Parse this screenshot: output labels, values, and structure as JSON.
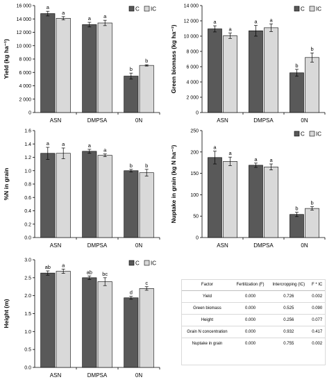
{
  "chart_data": [
    {
      "type": "bar",
      "panel": "yield",
      "ylabel": "Yield (kg ha⁻¹)",
      "categories": [
        "ASN",
        "DMPSA",
        "0N"
      ],
      "ylim": [
        0,
        16000
      ],
      "yticks": [
        0,
        2000,
        4000,
        6000,
        8000,
        10000,
        12000,
        14000,
        16000
      ],
      "ytick_labels": [
        "0",
        "2 000",
        "4 000",
        "6 000",
        "8 000",
        "10 000",
        "12 000",
        "14 000",
        "16 000"
      ],
      "series": [
        {
          "name": "C",
          "values": [
            14800,
            13150,
            5450
          ],
          "errors": [
            350,
            350,
            450
          ],
          "letters": [
            "a",
            "a",
            "b"
          ]
        },
        {
          "name": "IC",
          "values": [
            14100,
            13400,
            7050
          ],
          "errors": [
            250,
            400,
            100
          ],
          "letters": [
            "a",
            "a",
            "b"
          ]
        }
      ],
      "legend": "top-right"
    },
    {
      "type": "bar",
      "panel": "green-biomass",
      "ylabel": "Green biomass (kg ha⁻¹)",
      "categories": [
        "ASN",
        "DMPSA",
        "0N"
      ],
      "ylim": [
        0,
        14000
      ],
      "yticks": [
        0,
        2000,
        4000,
        6000,
        8000,
        10000,
        12000,
        14000
      ],
      "ytick_labels": [
        "0",
        "2 000",
        "4 000",
        "6 000",
        "8 000",
        "10 000",
        "12 000",
        "14 000"
      ],
      "series": [
        {
          "name": "C",
          "values": [
            10950,
            10700,
            5200
          ],
          "errors": [
            400,
            700,
            450
          ],
          "letters": [
            "a",
            "a",
            "b"
          ]
        },
        {
          "name": "IC",
          "values": [
            10050,
            11100,
            7200
          ],
          "errors": [
            350,
            500,
            600
          ],
          "letters": [
            "a",
            "a",
            "b"
          ]
        }
      ],
      "legend": "top-right"
    },
    {
      "type": "bar",
      "panel": "n-in-grain",
      "ylabel": "%N in grain",
      "categories": [
        "ASN",
        "DMPSA",
        "0N"
      ],
      "ylim": [
        0,
        1.6
      ],
      "yticks": [
        0,
        0.2,
        0.4,
        0.6,
        0.8,
        1.0,
        1.2,
        1.4,
        1.6
      ],
      "ytick_labels": [
        "0.0",
        "0.2",
        "0.4",
        "0.6",
        "0.8",
        "1.0",
        "1.2",
        "1.4",
        "1.6"
      ],
      "series": [
        {
          "name": "C",
          "values": [
            1.26,
            1.29,
            1.0
          ],
          "errors": [
            0.09,
            0.03,
            0.02
          ],
          "letters": [
            "a",
            "a",
            "b"
          ]
        },
        {
          "name": "IC",
          "values": [
            1.26,
            1.23,
            0.97
          ],
          "errors": [
            0.08,
            0.02,
            0.05
          ],
          "letters": [
            "a",
            "a",
            "b"
          ]
        }
      ],
      "legend": "none"
    },
    {
      "type": "bar",
      "panel": "nuptake-in-grain",
      "ylabel": "Nuptake in grain (kg N ha⁻¹)",
      "categories": [
        "ASN",
        "DMPSA",
        "0N"
      ],
      "ylim": [
        0,
        250
      ],
      "yticks": [
        0,
        50,
        100,
        150,
        200,
        250
      ],
      "ytick_labels": [
        "0",
        "50",
        "100",
        "150",
        "200",
        "250"
      ],
      "series": [
        {
          "name": "C",
          "values": [
            187,
            169,
            54
          ],
          "errors": [
            15,
            5,
            5
          ],
          "letters": [
            "a",
            "a",
            "b"
          ]
        },
        {
          "name": "IC",
          "values": [
            178,
            165,
            68
          ],
          "errors": [
            10,
            7,
            4
          ],
          "letters": [
            "a",
            "a",
            "b"
          ]
        }
      ],
      "legend": "top-right"
    },
    {
      "type": "bar",
      "panel": "height",
      "ylabel": "Height (m)",
      "categories": [
        "ASN",
        "DMPSA",
        "0N"
      ],
      "ylim": [
        0,
        3.0
      ],
      "yticks": [
        0,
        0.5,
        1.0,
        1.5,
        2.0,
        2.5,
        3.0
      ],
      "ytick_labels": [
        "0.0",
        "0.5",
        "1.0",
        "1.5",
        "2.0",
        "2.5",
        "3.0"
      ],
      "series": [
        {
          "name": "C",
          "values": [
            2.63,
            2.5,
            1.94
          ],
          "errors": [
            0.06,
            0.05,
            0.04
          ],
          "letters": [
            "ab",
            "ab",
            "d"
          ]
        },
        {
          "name": "IC",
          "values": [
            2.68,
            2.39,
            2.2
          ],
          "errors": [
            0.06,
            0.11,
            0.05
          ],
          "letters": [
            "a",
            "bc",
            "c"
          ]
        }
      ],
      "legend": "top-right"
    },
    {
      "type": "table",
      "columns": [
        "Factor",
        "Fertilization (F)",
        "Intercropping (IC)",
        "F * IC"
      ],
      "rows": [
        [
          "Yield",
          "0.000",
          "0.726",
          "0.002"
        ],
        [
          "Green biomass",
          "0.000",
          "0.525",
          "0.090"
        ],
        [
          "Height",
          "0.000",
          "0.256",
          "0.077"
        ],
        [
          "Grain N concentration",
          "0.000",
          "0.932",
          "0.417"
        ],
        [
          "Nuptake in grain",
          "0.000",
          "0.755",
          "0.002"
        ]
      ]
    }
  ],
  "colors": {
    "C": "#595959",
    "IC": "#d9d9d9",
    "border": "#000000"
  }
}
